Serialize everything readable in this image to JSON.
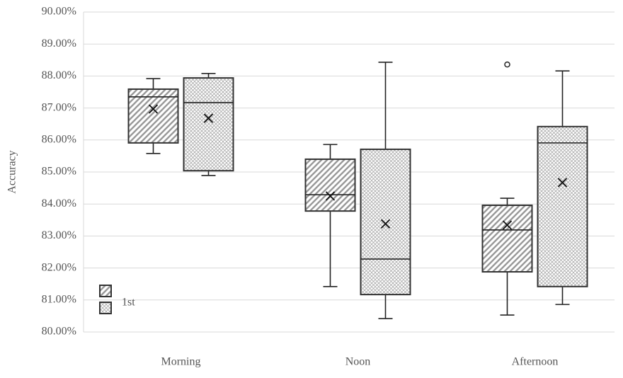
{
  "chart_data": {
    "type": "box",
    "y_label": "Accuracy",
    "categories": [
      "Morning",
      "Noon",
      "Afternoon"
    ],
    "ylim": [
      80,
      90
    ],
    "yticks": [
      {
        "value": 80,
        "label": "80.00%"
      },
      {
        "value": 81,
        "label": "81.00%"
      },
      {
        "value": 82,
        "label": "82.00%"
      },
      {
        "value": 83,
        "label": "83.00%"
      },
      {
        "value": 84,
        "label": "84.00%"
      },
      {
        "value": 85,
        "label": "85.00%"
      },
      {
        "value": 86,
        "label": "86.00%"
      },
      {
        "value": 87,
        "label": "87.00%"
      },
      {
        "value": 88,
        "label": "88.00%"
      },
      {
        "value": 89,
        "label": "89.00%"
      },
      {
        "value": 90,
        "label": "90.00%"
      }
    ],
    "grid": true,
    "series": [
      {
        "name": null,
        "color": "#333333",
        "pattern": "diagonal",
        "boxes": [
          {
            "whisker_low": 85.58,
            "q1": 85.91,
            "median": 87.35,
            "q3": 87.59,
            "whisker_high": 87.92,
            "mean": 86.97,
            "outliers": []
          },
          {
            "whisker_low": 81.42,
            "q1": 83.78,
            "median": 84.29,
            "q3": 85.4,
            "whisker_high": 85.86,
            "mean": 84.25,
            "outliers": []
          },
          {
            "whisker_low": 80.53,
            "q1": 81.88,
            "median": 83.19,
            "q3": 83.96,
            "whisker_high": 84.18,
            "mean": 83.34,
            "outliers": [
              88.36
            ]
          }
        ]
      },
      {
        "name": "1st",
        "color": "#333333",
        "pattern": "crosshatch",
        "boxes": [
          {
            "whisker_low": 84.89,
            "q1": 85.04,
            "median": 87.17,
            "q3": 87.94,
            "whisker_high": 88.08,
            "mean": 86.68,
            "outliers": []
          },
          {
            "whisker_low": 80.42,
            "q1": 81.17,
            "median": 82.28,
            "q3": 85.71,
            "whisker_high": 88.43,
            "mean": 83.38,
            "outliers": []
          },
          {
            "whisker_low": 80.86,
            "q1": 81.42,
            "median": 85.91,
            "q3": 86.42,
            "whisker_high": 88.16,
            "mean": 84.67,
            "outliers": []
          }
        ]
      }
    ]
  }
}
